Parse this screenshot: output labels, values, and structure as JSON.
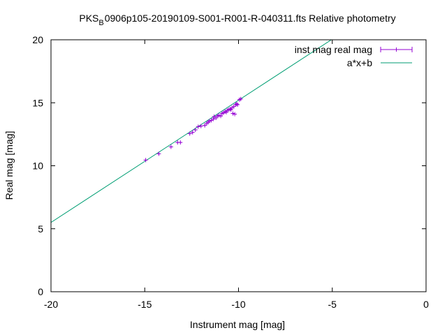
{
  "chart_data": {
    "type": "scatter",
    "title": {
      "prefix": "PKS",
      "subscript": "B",
      "rest": "0906p105-20190109-S001-R001-R-040311.fts Relative photometry"
    },
    "xlabel": "Instrument mag [mag]",
    "ylabel": "Real mag [mag]",
    "xlim": [
      -20,
      0
    ],
    "ylim": [
      0,
      20
    ],
    "xticks": [
      -20,
      -15,
      -10,
      -5,
      0
    ],
    "yticks": [
      0,
      5,
      10,
      15,
      20
    ],
    "xtick_labels": [
      "-20",
      "-15",
      "-10",
      "-5",
      "0"
    ],
    "ytick_labels": [
      "0",
      "5",
      "10",
      "15",
      "20"
    ],
    "grid": false,
    "legend_position": "top-right",
    "series": [
      {
        "name": "inst mag real mag",
        "kind": "points-with-xerrorbars",
        "color": "#9400d3",
        "points": [
          [
            -14.95,
            10.45
          ],
          [
            -14.25,
            10.95
          ],
          [
            -13.6,
            11.5
          ],
          [
            -13.25,
            11.85
          ],
          [
            -13.1,
            11.85
          ],
          [
            -12.6,
            12.55
          ],
          [
            -12.45,
            12.65
          ],
          [
            -12.3,
            12.85
          ],
          [
            -12.15,
            13.1
          ],
          [
            -12.0,
            13.15
          ],
          [
            -11.8,
            13.2
          ],
          [
            -11.7,
            13.35
          ],
          [
            -11.62,
            13.45
          ],
          [
            -11.55,
            13.55
          ],
          [
            -11.45,
            13.6
          ],
          [
            -11.35,
            13.7
          ],
          [
            -11.3,
            13.9
          ],
          [
            -11.2,
            13.8
          ],
          [
            -11.12,
            13.95
          ],
          [
            -11.05,
            14.0
          ],
          [
            -10.95,
            13.95
          ],
          [
            -10.88,
            14.15
          ],
          [
            -10.8,
            14.2
          ],
          [
            -10.72,
            14.3
          ],
          [
            -10.65,
            14.25
          ],
          [
            -10.6,
            14.4
          ],
          [
            -10.52,
            14.45
          ],
          [
            -10.45,
            14.5
          ],
          [
            -10.4,
            14.45
          ],
          [
            -10.35,
            14.6
          ],
          [
            -10.3,
            14.15
          ],
          [
            -10.25,
            14.7
          ],
          [
            -10.2,
            14.1
          ],
          [
            -10.15,
            14.85
          ],
          [
            -10.1,
            14.9
          ],
          [
            -10.05,
            14.85
          ],
          [
            -9.95,
            15.25
          ],
          [
            -9.88,
            15.3
          ]
        ],
        "xerr": [
          0.05,
          0.05,
          0.05,
          0.05,
          0.05,
          0.05,
          0.05,
          0.05,
          0.05,
          0.05,
          0.05,
          0.05,
          0.05,
          0.05,
          0.05,
          0.05,
          0.05,
          0.05,
          0.05,
          0.05,
          0.05,
          0.05,
          0.05,
          0.05,
          0.05,
          0.05,
          0.05,
          0.05,
          0.05,
          0.05,
          0.05,
          0.05,
          0.05,
          0.05,
          0.05,
          0.05,
          0.05,
          0.05
        ]
      },
      {
        "name": "a*x+b",
        "kind": "line",
        "color": "#009e73",
        "slope": 0.97,
        "intercept": 24.9
      }
    ]
  }
}
